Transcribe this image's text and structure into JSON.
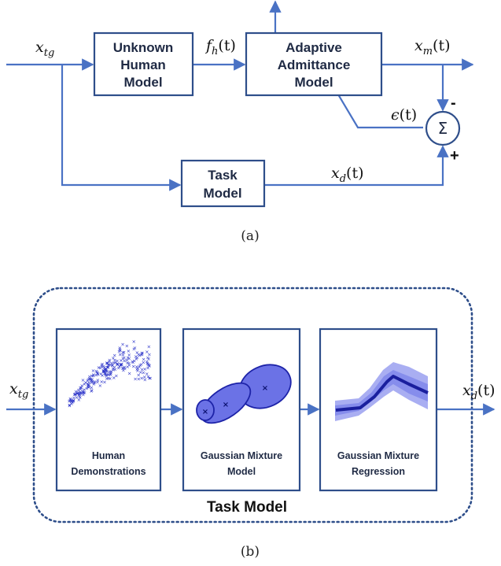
{
  "diagram_a": {
    "input_label": {
      "main": "x",
      "sub": "tg"
    },
    "blocks": {
      "unknown_human_model": [
        "Unknown",
        "Human",
        "Model"
      ],
      "adaptive_admittance_model": [
        "Adaptive",
        "Admittance",
        "Model"
      ],
      "task_model": [
        "Task",
        "Model"
      ]
    },
    "signals": {
      "fh": {
        "main": "f",
        "sub": "h",
        "arg": "(t)"
      },
      "xm": {
        "main": "x",
        "sub": "m",
        "arg": "(t)"
      },
      "eps": {
        "main": "ϵ",
        "arg": "(t)"
      },
      "xd": {
        "main": "x",
        "sub": "d",
        "arg": "(t)"
      }
    },
    "summer": {
      "symbol": "Σ",
      "minus": "-",
      "plus": "+"
    },
    "caption": "(a)"
  },
  "diagram_b": {
    "input_label": {
      "main": "x",
      "sub": "tg"
    },
    "output_label": {
      "main": "x",
      "sub": "d",
      "arg": "(t)"
    },
    "panels": {
      "human_demonstrations": [
        "Human",
        "Demonstrations"
      ],
      "gmm": [
        "Gaussian Mixture",
        "Model"
      ],
      "gmr": [
        "Gaussian Mixture",
        "Regression"
      ]
    },
    "scatter_marker": "×",
    "container_label": "Task Model",
    "caption": "(b)"
  },
  "colors": {
    "line": "#4a72c4",
    "block_border": "#2e4e8a",
    "ellipse_fill": "#6b72e6",
    "ellipse_stroke": "#1d23a8",
    "scatter": "#2b33c9",
    "band": "#9aa0f0",
    "mean": "#1a1f9e"
  }
}
